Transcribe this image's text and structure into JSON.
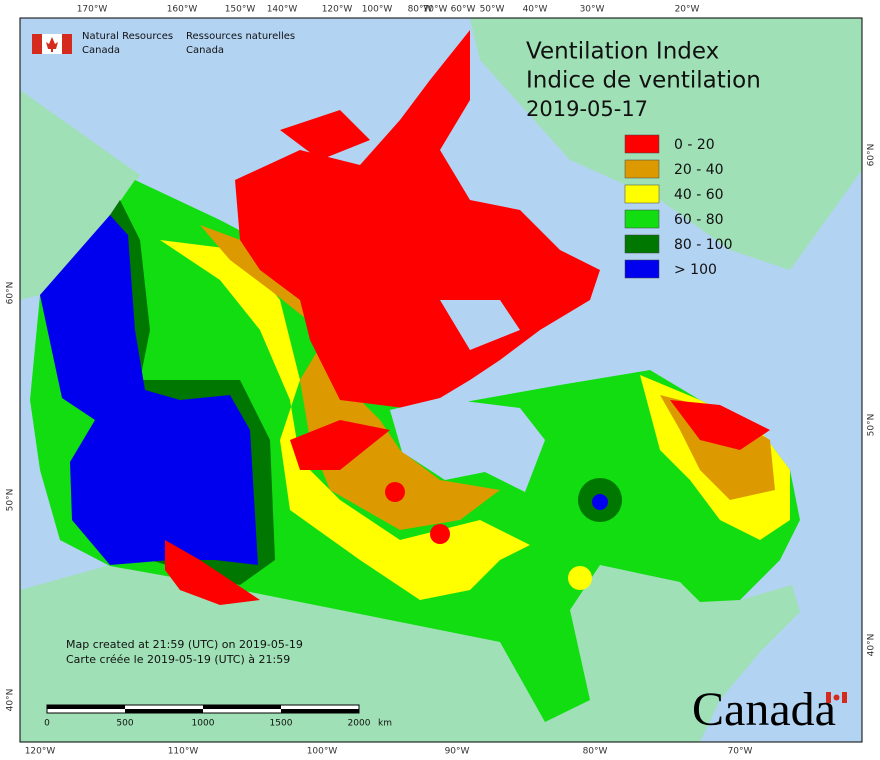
{
  "agency": {
    "en": [
      "Natural Resources",
      "Canada"
    ],
    "fr": [
      "Ressources naturelles",
      "Canada"
    ]
  },
  "title": [
    "Ventilation Index",
    "Indice de ventilation",
    "2019-05-17"
  ],
  "legend": [
    {
      "label": "0 - 20",
      "color": "#ff0000"
    },
    {
      "label": "20 - 40",
      "color": "#dd9900"
    },
    {
      "label": "40 - 60",
      "color": "#ffff00"
    },
    {
      "label": "60 - 80",
      "color": "#11dd11"
    },
    {
      "label": "80 - 100",
      "color": "#007700"
    },
    {
      "label": "> 100",
      "color": "#0000ee"
    }
  ],
  "graticule": {
    "top": [
      "170°W",
      "160°W",
      "150°W",
      "140°W",
      "120°W",
      "100°W",
      "80°W",
      "70°W",
      "60°W",
      "50°W",
      "40°W",
      "30°W",
      "20°W"
    ],
    "bottom": [
      "120°W",
      "110°W",
      "100°W",
      "90°W",
      "80°W",
      "70°W"
    ],
    "left": [
      "60°N",
      "50°N",
      "40°N"
    ],
    "right": [
      "60°N",
      "50°N",
      "40°N"
    ]
  },
  "credits": [
    "Map created at 21:59 (UTC) on 2019-05-19",
    "Carte créée le 2019-05-19 (UTC) à 21:59"
  ],
  "scale_bar": {
    "ticks": [
      "0",
      "500",
      "1000",
      "1500",
      "2000"
    ],
    "unit": "km"
  },
  "wordmark": "Canada"
}
